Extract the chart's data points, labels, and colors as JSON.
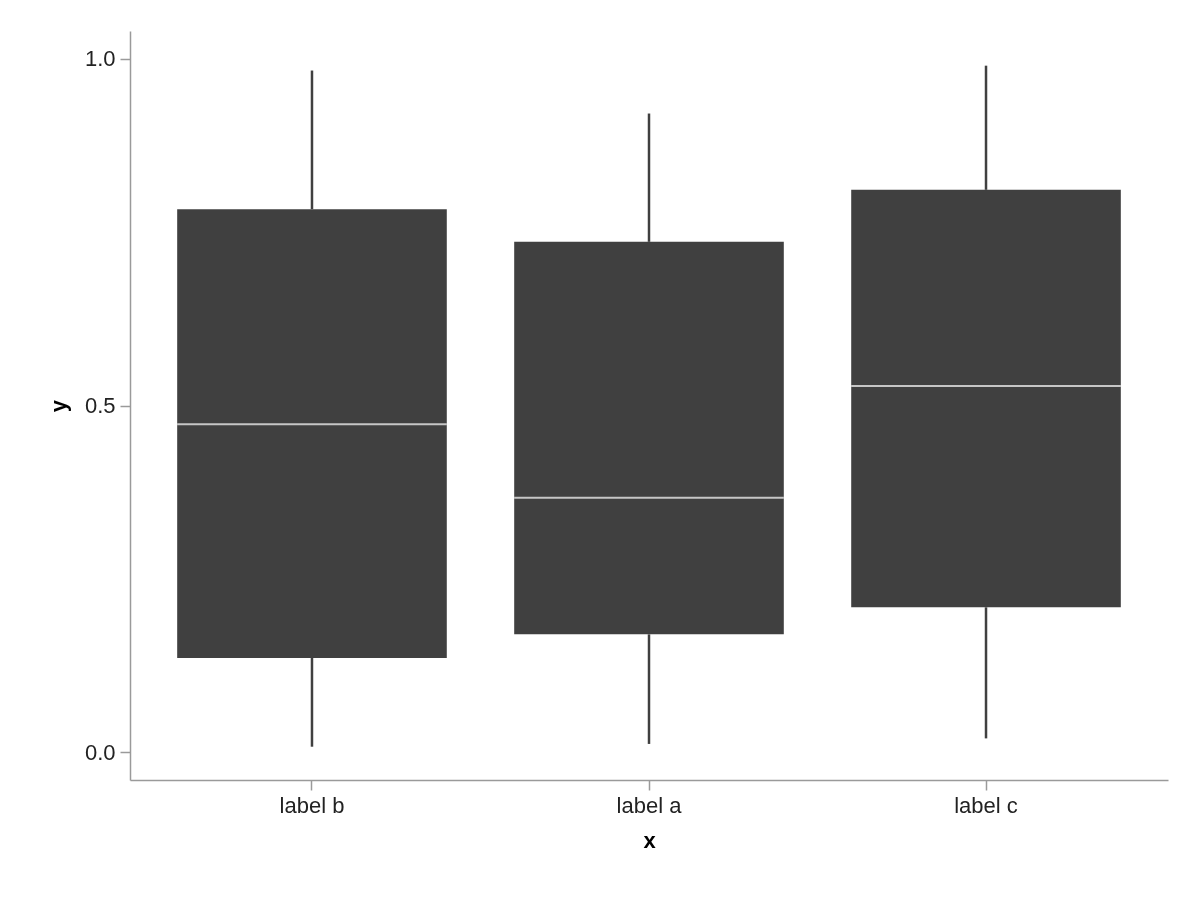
{
  "chart_data": {
    "type": "box",
    "xlabel": "x",
    "ylabel": "y",
    "categories": [
      "label b",
      "label a",
      "label c"
    ],
    "boxes": [
      {
        "low": 0.008,
        "q1": 0.136,
        "median": 0.473,
        "q3": 0.783,
        "high": 0.983
      },
      {
        "low": 0.012,
        "q1": 0.17,
        "median": 0.367,
        "q3": 0.736,
        "high": 0.921
      },
      {
        "low": 0.02,
        "q1": 0.209,
        "median": 0.528,
        "q3": 0.811,
        "high": 0.99
      }
    ],
    "color": "#404040",
    "ylim": [
      -0.04,
      1.04
    ],
    "yticks": [
      {
        "value": 0,
        "label": "0.0"
      },
      {
        "value": 0.5,
        "label": "0.5"
      },
      {
        "value": 1,
        "label": "1.0"
      }
    ]
  }
}
